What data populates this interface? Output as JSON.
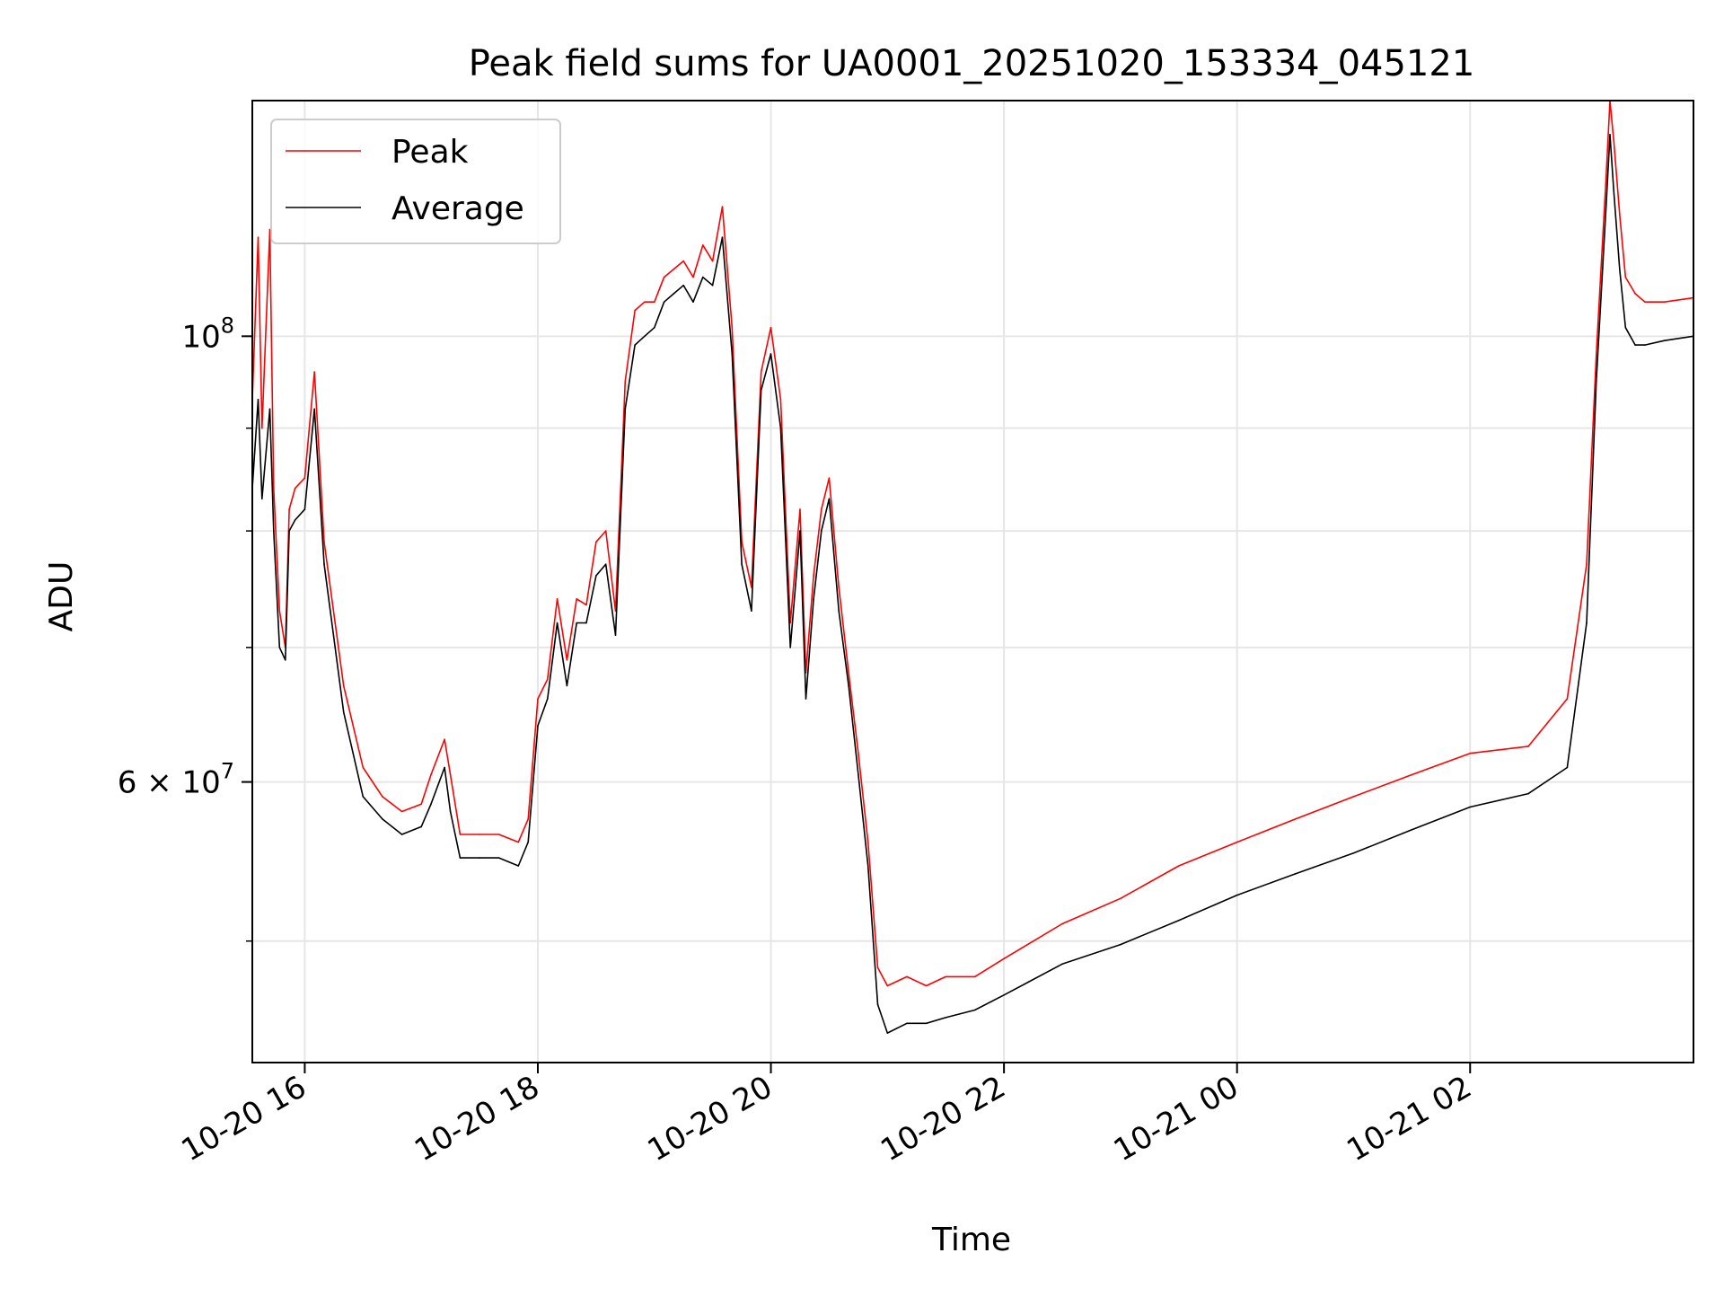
{
  "chart_data": {
    "type": "line",
    "title": "Peak field sums for UA0001_20251020_153334_045121",
    "xlabel": "Time",
    "ylabel": "ADU",
    "y_scale": "log",
    "grid": true,
    "legend_position": "top-left",
    "xlim": [
      "2025-10-20 15:33",
      "2025-10-21 03:55"
    ],
    "ylim": [
      43500000,
      131000000
    ],
    "x_ticks": [
      {
        "value": "2025-10-20 16:00",
        "label": "10-20 16"
      },
      {
        "value": "2025-10-20 18:00",
        "label": "10-20 18"
      },
      {
        "value": "2025-10-20 20:00",
        "label": "10-20 20"
      },
      {
        "value": "2025-10-20 22:00",
        "label": "10-20 22"
      },
      {
        "value": "2025-10-21 00:00",
        "label": "10-21 00"
      },
      {
        "value": "2025-10-21 02:00",
        "label": "10-21 02"
      }
    ],
    "y_major_ticks": [
      {
        "value": 100000000,
        "label": "10",
        "exp": "8"
      },
      {
        "value": 60000000,
        "label": "6 × 10",
        "exp": "7"
      }
    ],
    "y_minor_ticks": [
      50000000,
      70000000,
      80000000,
      90000000
    ],
    "series": [
      {
        "name": "Peak",
        "color": "#ff0000",
        "x": [
          "2025-10-20 15:33",
          "2025-10-20 15:36",
          "2025-10-20 15:38",
          "2025-10-20 15:42",
          "2025-10-20 15:44",
          "2025-10-20 15:47",
          "2025-10-20 15:50",
          "2025-10-20 15:52",
          "2025-10-20 15:55",
          "2025-10-20 16:00",
          "2025-10-20 16:05",
          "2025-10-20 16:10",
          "2025-10-20 16:20",
          "2025-10-20 16:30",
          "2025-10-20 16:40",
          "2025-10-20 16:50",
          "2025-10-20 17:00",
          "2025-10-20 17:05",
          "2025-10-20 17:12",
          "2025-10-20 17:15",
          "2025-10-20 17:20",
          "2025-10-20 17:30",
          "2025-10-20 17:40",
          "2025-10-20 17:50",
          "2025-10-20 17:55",
          "2025-10-20 18:00",
          "2025-10-20 18:05",
          "2025-10-20 18:10",
          "2025-10-20 18:15",
          "2025-10-20 18:20",
          "2025-10-20 18:25",
          "2025-10-20 18:30",
          "2025-10-20 18:35",
          "2025-10-20 18:40",
          "2025-10-20 18:45",
          "2025-10-20 18:50",
          "2025-10-20 18:55",
          "2025-10-20 19:00",
          "2025-10-20 19:05",
          "2025-10-20 19:10",
          "2025-10-20 19:15",
          "2025-10-20 19:20",
          "2025-10-20 19:25",
          "2025-10-20 19:30",
          "2025-10-20 19:35",
          "2025-10-20 19:40",
          "2025-10-20 19:45",
          "2025-10-20 19:50",
          "2025-10-20 19:55",
          "2025-10-20 20:00",
          "2025-10-20 20:05",
          "2025-10-20 20:10",
          "2025-10-20 20:15",
          "2025-10-20 20:18",
          "2025-10-20 20:22",
          "2025-10-20 20:26",
          "2025-10-20 20:30",
          "2025-10-20 20:35",
          "2025-10-20 20:40",
          "2025-10-20 20:45",
          "2025-10-20 20:50",
          "2025-10-20 20:55",
          "2025-10-20 21:00",
          "2025-10-20 21:10",
          "2025-10-20 21:20",
          "2025-10-20 21:30",
          "2025-10-20 21:45",
          "2025-10-20 22:00",
          "2025-10-20 22:30",
          "2025-10-20 23:00",
          "2025-10-20 23:30",
          "2025-10-21 00:00",
          "2025-10-21 00:30",
          "2025-10-21 01:00",
          "2025-10-21 01:30",
          "2025-10-21 02:00",
          "2025-10-21 02:30",
          "2025-10-21 02:50",
          "2025-10-21 03:00",
          "2025-10-21 03:05",
          "2025-10-21 03:10",
          "2025-10-21 03:12",
          "2025-10-21 03:14",
          "2025-10-21 03:17",
          "2025-10-21 03:20",
          "2025-10-21 03:25",
          "2025-10-21 03:30",
          "2025-10-21 03:40",
          "2025-10-21 03:55"
        ],
        "values": [
          93000000,
          112000000,
          90000000,
          113000000,
          84000000,
          73000000,
          70000000,
          82000000,
          84000000,
          85000000,
          96000000,
          79000000,
          67000000,
          61000000,
          59000000,
          58000000,
          58500000,
          60500000,
          63000000,
          60500000,
          56500000,
          56500000,
          56500000,
          56000000,
          57500000,
          66000000,
          67500000,
          74000000,
          69000000,
          74000000,
          73500000,
          79000000,
          80000000,
          73000000,
          95000000,
          103000000,
          104000000,
          104000000,
          107000000,
          108000000,
          109000000,
          107000000,
          111000000,
          109000000,
          116000000,
          101000000,
          79000000,
          75000000,
          96000000,
          101000000,
          93000000,
          72000000,
          82000000,
          68000000,
          76000000,
          82000000,
          85000000,
          75000000,
          68000000,
          62000000,
          56000000,
          48500000,
          47500000,
          48000000,
          47500000,
          48000000,
          48000000,
          49000000,
          51000000,
          52500000,
          54500000,
          56000000,
          57500000,
          59000000,
          60500000,
          62000000,
          62500000,
          66000000,
          77000000,
          98000000,
          120000000,
          131000000,
          125000000,
          115000000,
          107000000,
          105000000,
          104000000,
          104000000,
          104500000
        ]
      },
      {
        "name": "Average",
        "color": "#000000",
        "x": [
          "2025-10-20 15:33",
          "2025-10-20 15:36",
          "2025-10-20 15:38",
          "2025-10-20 15:42",
          "2025-10-20 15:44",
          "2025-10-20 15:47",
          "2025-10-20 15:50",
          "2025-10-20 15:52",
          "2025-10-20 15:55",
          "2025-10-20 16:00",
          "2025-10-20 16:05",
          "2025-10-20 16:10",
          "2025-10-20 16:20",
          "2025-10-20 16:30",
          "2025-10-20 16:40",
          "2025-10-20 16:50",
          "2025-10-20 17:00",
          "2025-10-20 17:05",
          "2025-10-20 17:12",
          "2025-10-20 17:15",
          "2025-10-20 17:20",
          "2025-10-20 17:30",
          "2025-10-20 17:40",
          "2025-10-20 17:50",
          "2025-10-20 17:55",
          "2025-10-20 18:00",
          "2025-10-20 18:05",
          "2025-10-20 18:10",
          "2025-10-20 18:15",
          "2025-10-20 18:20",
          "2025-10-20 18:25",
          "2025-10-20 18:30",
          "2025-10-20 18:35",
          "2025-10-20 18:40",
          "2025-10-20 18:45",
          "2025-10-20 18:50",
          "2025-10-20 18:55",
          "2025-10-20 19:00",
          "2025-10-20 19:05",
          "2025-10-20 19:10",
          "2025-10-20 19:15",
          "2025-10-20 19:20",
          "2025-10-20 19:25",
          "2025-10-20 19:30",
          "2025-10-20 19:35",
          "2025-10-20 19:40",
          "2025-10-20 19:45",
          "2025-10-20 19:50",
          "2025-10-20 19:55",
          "2025-10-20 20:00",
          "2025-10-20 20:05",
          "2025-10-20 20:10",
          "2025-10-20 20:15",
          "2025-10-20 20:18",
          "2025-10-20 20:22",
          "2025-10-20 20:26",
          "2025-10-20 20:30",
          "2025-10-20 20:35",
          "2025-10-20 20:40",
          "2025-10-20 20:45",
          "2025-10-20 20:50",
          "2025-10-20 20:55",
          "2025-10-20 21:00",
          "2025-10-20 21:10",
          "2025-10-20 21:20",
          "2025-10-20 21:30",
          "2025-10-20 21:45",
          "2025-10-20 22:00",
          "2025-10-20 22:30",
          "2025-10-20 23:00",
          "2025-10-20 23:30",
          "2025-10-21 00:00",
          "2025-10-21 00:30",
          "2025-10-21 01:00",
          "2025-10-21 01:30",
          "2025-10-21 02:00",
          "2025-10-21 02:30",
          "2025-10-21 02:50",
          "2025-10-21 03:00",
          "2025-10-21 03:05",
          "2025-10-21 03:10",
          "2025-10-21 03:12",
          "2025-10-21 03:14",
          "2025-10-21 03:17",
          "2025-10-21 03:20",
          "2025-10-21 03:25",
          "2025-10-21 03:30",
          "2025-10-21 03:40",
          "2025-10-21 03:55"
        ],
        "values": [
          84000000,
          93000000,
          83000000,
          92000000,
          80000000,
          70000000,
          69000000,
          80000000,
          81000000,
          82000000,
          92000000,
          77000000,
          65000000,
          59000000,
          57500000,
          56500000,
          57000000,
          58500000,
          61000000,
          58000000,
          55000000,
          55000000,
          55000000,
          54500000,
          56000000,
          64000000,
          66000000,
          72000000,
          67000000,
          72000000,
          72000000,
          76000000,
          77000000,
          71000000,
          92000000,
          99000000,
          100000000,
          101000000,
          104000000,
          105000000,
          106000000,
          104000000,
          107000000,
          106000000,
          112000000,
          98000000,
          77000000,
          73000000,
          94000000,
          98000000,
          90000000,
          70000000,
          80000000,
          66000000,
          74000000,
          80000000,
          83000000,
          73000000,
          67000000,
          60500000,
          54500000,
          46500000,
          45000000,
          45500000,
          45500000,
          45800000,
          46200000,
          47000000,
          48700000,
          49800000,
          51200000,
          52700000,
          54000000,
          55300000,
          56800000,
          58300000,
          59200000,
          61000000,
          72000000,
          95000000,
          116000000,
          126000000,
          118000000,
          108000000,
          101000000,
          99000000,
          99000000,
          99500000,
          100000000
        ]
      }
    ]
  }
}
